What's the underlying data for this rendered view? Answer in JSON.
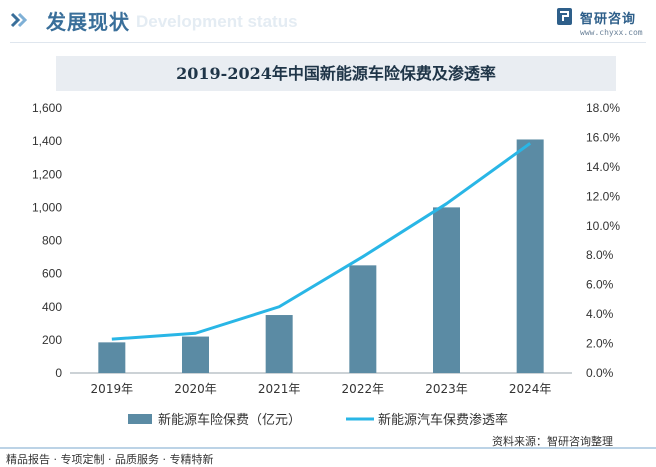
{
  "header": {
    "title": "发展现状",
    "subtitle": "Development status",
    "brand_name": "智研咨询",
    "brand_url": "www.chyxx.com"
  },
  "colors": {
    "accent": "#3a6f9a",
    "bar": "#5b8ba4",
    "line": "#29b6e6",
    "title_bg": "#e9edf2"
  },
  "chart_data": {
    "type": "bar",
    "title": "2019-2024年中国新能源车险保费及渗透率",
    "categories": [
      "2019年",
      "2020年",
      "2021年",
      "2022年",
      "2023年",
      "2024年"
    ],
    "series": [
      {
        "name": "新能源车险保费（亿元）",
        "type": "bar",
        "axis": "left",
        "values": [
          185,
          220,
          350,
          650,
          1000,
          1410
        ]
      },
      {
        "name": "新能源汽车保费渗透率",
        "type": "line",
        "axis": "right",
        "values": [
          2.3,
          2.7,
          4.5,
          7.9,
          11.5,
          15.6
        ]
      }
    ],
    "y_left": {
      "lim": [
        0,
        1600
      ],
      "ticks": [
        "0",
        "200",
        "400",
        "600",
        "800",
        "1,000",
        "1,200",
        "1,400",
        "1,600"
      ]
    },
    "y_right": {
      "lim": [
        0,
        18
      ],
      "ticks": [
        "0.0%",
        "2.0%",
        "4.0%",
        "6.0%",
        "8.0%",
        "10.0%",
        "12.0%",
        "14.0%",
        "16.0%",
        "18.0%"
      ]
    },
    "grid": false,
    "legend": "bottom"
  },
  "footer": {
    "left_text": "精品报告 · 专项定制 · 品质服务 · 专精特新",
    "source_text": "资料来源：智研咨询整理"
  }
}
